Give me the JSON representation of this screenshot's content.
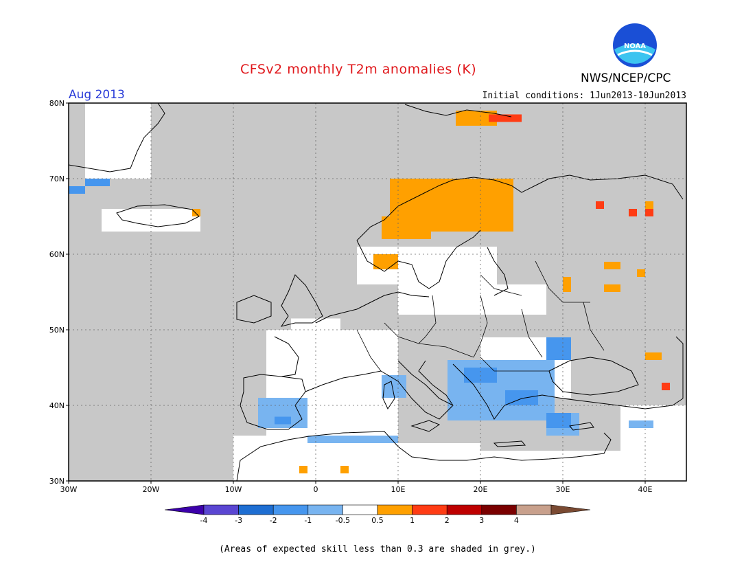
{
  "header": {
    "title": "CFSv2 monthly T2m anomalies (K)",
    "agency": "NWS/NCEP/CPC",
    "logo_text": "NOAA",
    "month": "Aug 2013",
    "initial_conditions": "Initial conditions: 1Jun2013-10Jun2013"
  },
  "footer": {
    "note": "(Areas of expected skill less than 0.3 are shaded in grey.)"
  },
  "map": {
    "lon_range": [
      -30,
      45
    ],
    "lat_range": [
      30,
      80
    ],
    "lat_ticks": [
      {
        "value": 80,
        "label": "80N"
      },
      {
        "value": 70,
        "label": "70N"
      },
      {
        "value": 60,
        "label": "60N"
      },
      {
        "value": 50,
        "label": "50N"
      },
      {
        "value": 40,
        "label": "40N"
      },
      {
        "value": 30,
        "label": "30N"
      }
    ],
    "lon_ticks": [
      {
        "value": -30,
        "label": "30W"
      },
      {
        "value": -20,
        "label": "20W"
      },
      {
        "value": -10,
        "label": "10W"
      },
      {
        "value": 0,
        "label": "0"
      },
      {
        "value": 10,
        "label": "10E"
      },
      {
        "value": 20,
        "label": "20E"
      },
      {
        "value": 30,
        "label": "30E"
      },
      {
        "value": 40,
        "label": "40E"
      }
    ],
    "colors": {
      "grey": "#c8c8c8",
      "white": "#ffffff",
      "light_blue": "#78b4f0",
      "blue": "#4696ee",
      "dark_blue": "#1e6ed2",
      "orange": "#ffa000",
      "red": "#ff3c14"
    },
    "anomaly_patches": [
      {
        "color": "white",
        "lon": [
          -6,
          10
        ],
        "lat": [
          36,
          50
        ]
      },
      {
        "color": "white",
        "lon": [
          -3,
          3
        ],
        "lat": [
          50,
          51.5
        ]
      },
      {
        "color": "white",
        "lon": [
          -10,
          0
        ],
        "lat": [
          30,
          36
        ]
      },
      {
        "color": "white",
        "lon": [
          0,
          20
        ],
        "lat": [
          30,
          35
        ]
      },
      {
        "color": "white",
        "lon": [
          20,
          38
        ],
        "lat": [
          30,
          34
        ]
      },
      {
        "color": "white",
        "lon": [
          20,
          31
        ],
        "lat": [
          41,
          49
        ]
      },
      {
        "color": "white",
        "lon": [
          -26,
          -14
        ],
        "lat": [
          63,
          66
        ]
      },
      {
        "color": "white",
        "lon": [
          37,
          45
        ],
        "lat": [
          30,
          40
        ]
      },
      {
        "color": "white",
        "lon": [
          -28,
          -20
        ],
        "lat": [
          70,
          80
        ]
      },
      {
        "color": "white",
        "lon": [
          5,
          22
        ],
        "lat": [
          56,
          61
        ]
      },
      {
        "color": "white",
        "lon": [
          10,
          28
        ],
        "lat": [
          52,
          56
        ]
      },
      {
        "color": "light_blue",
        "lon": [
          -7,
          -1
        ],
        "lat": [
          37,
          41
        ]
      },
      {
        "color": "light_blue",
        "lon": [
          -1,
          10
        ],
        "lat": [
          35,
          36
        ]
      },
      {
        "color": "light_blue",
        "lon": [
          8,
          11
        ],
        "lat": [
          41,
          44
        ]
      },
      {
        "color": "light_blue",
        "lon": [
          16,
          29
        ],
        "lat": [
          38,
          46
        ]
      },
      {
        "color": "light_blue",
        "lon": [
          28,
          32
        ],
        "lat": [
          36,
          39
        ]
      },
      {
        "color": "light_blue",
        "lon": [
          38,
          41
        ],
        "lat": [
          37,
          38
        ]
      },
      {
        "color": "blue",
        "lon": [
          -28,
          -25
        ],
        "lat": [
          69,
          70
        ]
      },
      {
        "color": "blue",
        "lon": [
          -30,
          -28
        ],
        "lat": [
          68,
          69
        ]
      },
      {
        "color": "blue",
        "lon": [
          -5,
          -3
        ],
        "lat": [
          37.5,
          38.5
        ]
      },
      {
        "color": "blue",
        "lon": [
          23,
          27
        ],
        "lat": [
          40,
          42
        ]
      },
      {
        "color": "blue",
        "lon": [
          18,
          22
        ],
        "lat": [
          43,
          45
        ]
      },
      {
        "color": "blue",
        "lon": [
          28,
          31
        ],
        "lat": [
          46,
          49
        ]
      },
      {
        "color": "blue",
        "lon": [
          28,
          31
        ],
        "lat": [
          37,
          39
        ]
      },
      {
        "color": "orange",
        "lon": [
          9,
          24
        ],
        "lat": [
          63,
          70
        ]
      },
      {
        "color": "orange",
        "lon": [
          8,
          14
        ],
        "lat": [
          62,
          65
        ]
      },
      {
        "color": "orange",
        "lon": [
          7,
          10
        ],
        "lat": [
          58,
          60
        ]
      },
      {
        "color": "orange",
        "lon": [
          17,
          22
        ],
        "lat": [
          77,
          79
        ]
      },
      {
        "color": "orange",
        "lon": [
          35,
          37
        ],
        "lat": [
          58,
          59
        ]
      },
      {
        "color": "orange",
        "lon": [
          30,
          31
        ],
        "lat": [
          55,
          57
        ]
      },
      {
        "color": "orange",
        "lon": [
          35,
          37
        ],
        "lat": [
          55,
          56
        ]
      },
      {
        "color": "orange",
        "lon": [
          39,
          40
        ],
        "lat": [
          57,
          58
        ]
      },
      {
        "color": "orange",
        "lon": [
          40,
          42
        ],
        "lat": [
          46,
          47
        ]
      },
      {
        "color": "orange",
        "lon": [
          -15,
          -14
        ],
        "lat": [
          65,
          66
        ]
      },
      {
        "color": "orange",
        "lon": [
          -2,
          -1
        ],
        "lat": [
          31,
          32
        ]
      },
      {
        "color": "orange",
        "lon": [
          3,
          4
        ],
        "lat": [
          31,
          32
        ]
      },
      {
        "color": "orange",
        "lon": [
          40,
          41
        ],
        "lat": [
          66,
          67
        ]
      },
      {
        "color": "red",
        "lon": [
          21,
          25
        ],
        "lat": [
          77.5,
          78.5
        ]
      },
      {
        "color": "red",
        "lon": [
          34,
          35
        ],
        "lat": [
          66,
          67
        ]
      },
      {
        "color": "red",
        "lon": [
          38,
          39
        ],
        "lat": [
          65,
          66
        ]
      },
      {
        "color": "red",
        "lon": [
          40,
          41
        ],
        "lat": [
          65,
          66
        ]
      },
      {
        "color": "red",
        "lon": [
          42,
          43
        ],
        "lat": [
          42,
          43
        ]
      }
    ]
  },
  "colorbar": {
    "colors": [
      "#3c00aa",
      "#5a46d2",
      "#1e6ed2",
      "#4696ee",
      "#78b4f0",
      "#ffffff",
      "#ffa000",
      "#ff3c14",
      "#be0000",
      "#7a0000",
      "#c8a08c",
      "#7a4a32"
    ],
    "labels": [
      "-4",
      "-3",
      "-2",
      "-1",
      "-0.5",
      "0.5",
      "1",
      "2",
      "3",
      "4"
    ]
  }
}
